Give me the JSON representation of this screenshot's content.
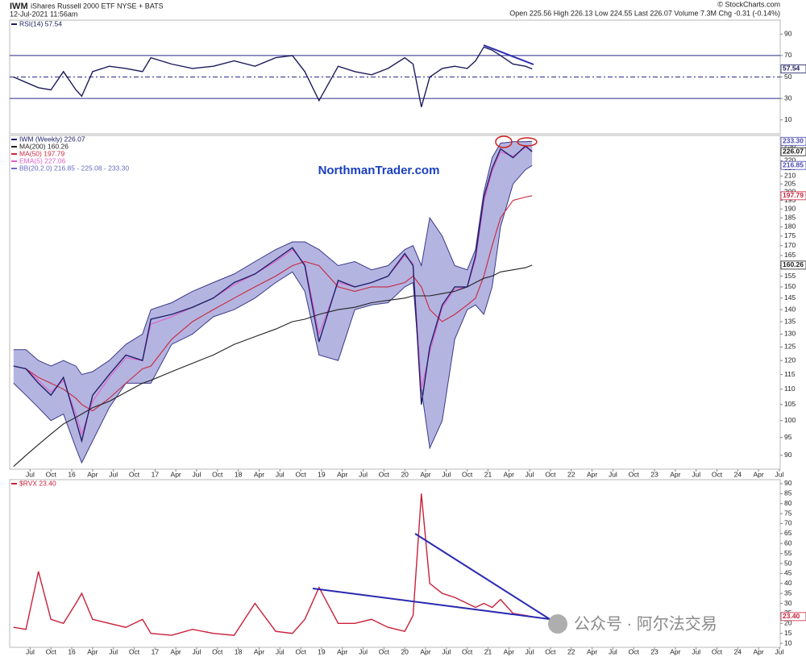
{
  "header": {
    "symbol": "IWM",
    "description": "iShares Russell 2000 ETF NYSE + BATS",
    "date": "12-Jul-2021 11:56am",
    "source": "© StockCharts.com",
    "quote": "Open 225.56 High 226.13 Low 224.55 Last 226.07 Volume 7.3M Chg -0.31 (-0.14%)"
  },
  "watermark": "公众号 · 阿尔法交易",
  "chart_data": [
    {
      "type": "line",
      "xlim": [
        2015.254,
        2024.51
      ],
      "ylim": [
        -3,
        103
      ],
      "yticks": [
        10,
        30,
        50,
        70,
        90
      ],
      "levels": [
        30,
        50,
        70
      ],
      "x": [
        2015.3,
        2015.45,
        2015.6,
        2015.75,
        2015.9,
        2016.05,
        2016.12,
        2016.25,
        2016.45,
        2016.65,
        2016.85,
        2016.95,
        2017.2,
        2017.45,
        2017.7,
        2017.95,
        2018.2,
        2018.45,
        2018.65,
        2018.8,
        2018.97,
        2019.2,
        2019.4,
        2019.6,
        2019.8,
        2020.0,
        2020.1,
        2020.2,
        2020.3,
        2020.45,
        2020.6,
        2020.75,
        2020.85,
        2020.95,
        2021.05,
        2021.15,
        2021.3,
        2021.45,
        2021.53
      ],
      "series": [
        {
          "name": "RSI(14) 57.54",
          "color": "#1c1c5c",
          "values": [
            50,
            45,
            40,
            38,
            55,
            38,
            32,
            55,
            60,
            58,
            55,
            68,
            62,
            58,
            60,
            65,
            60,
            68,
            70,
            55,
            28,
            60,
            55,
            52,
            58,
            68,
            62,
            22,
            50,
            58,
            60,
            58,
            65,
            78,
            75,
            70,
            62,
            60,
            57.54
          ]
        }
      ],
      "markers": [
        {
          "value": 57.54,
          "label": "57.54",
          "color": "#1c1c5c"
        }
      ]
    },
    {
      "type": "line",
      "log": true,
      "xlim": [
        2015.254,
        2024.51
      ],
      "ylim": [
        86.3,
        237.5
      ],
      "yticks": [
        90,
        95,
        100,
        105,
        110,
        115,
        120,
        125,
        130,
        135,
        140,
        145,
        150,
        155,
        160,
        165,
        170,
        175,
        180,
        185,
        190,
        195,
        200,
        205,
        210,
        215,
        220,
        225,
        230
      ],
      "annotation": "NorthmanTrader.com",
      "x": [
        2015.3,
        2015.45,
        2015.6,
        2015.75,
        2015.9,
        2016.05,
        2016.12,
        2016.25,
        2016.45,
        2016.65,
        2016.85,
        2016.95,
        2017.2,
        2017.45,
        2017.7,
        2017.95,
        2018.2,
        2018.45,
        2018.65,
        2018.8,
        2018.97,
        2019.2,
        2019.4,
        2019.6,
        2019.8,
        2020.0,
        2020.1,
        2020.2,
        2020.3,
        2020.45,
        2020.6,
        2020.75,
        2020.85,
        2020.95,
        2021.05,
        2021.15,
        2021.3,
        2021.45,
        2021.53
      ],
      "bands": {
        "name": "BB(20,2.0) 216.85 - 225.08 - 233.30",
        "color": "#6a6ac4",
        "upper": [
          124,
          124,
          120,
          118,
          120,
          118,
          115,
          116,
          120,
          126,
          130,
          140,
          143,
          148,
          152,
          156,
          162,
          168,
          172,
          172,
          168,
          160,
          162,
          158,
          160,
          168,
          170,
          160,
          185,
          175,
          160,
          158,
          168,
          200,
          222,
          232,
          233,
          233,
          233.3
        ],
        "lower": [
          112,
          108,
          104,
          100,
          102,
          92,
          88,
          94,
          104,
          112,
          112,
          112,
          126,
          130,
          137,
          140,
          145,
          152,
          157,
          148,
          122,
          120,
          140,
          142,
          143,
          150,
          152,
          110,
          92,
          100,
          128,
          140,
          142,
          138,
          150,
          180,
          205,
          214,
          216.85
        ]
      },
      "series": [
        {
          "name": "IWM (Weekly) 226.07",
          "color": "#20206a",
          "values": [
            118,
            117,
            112,
            108,
            114,
            100,
            94,
            108,
            115,
            122,
            120,
            136,
            138,
            141,
            145,
            152,
            156,
            163,
            169,
            160,
            127,
            153,
            150,
            152,
            155,
            166,
            160,
            105,
            125,
            142,
            150,
            150,
            165,
            197,
            215,
            228,
            222,
            230,
            226.07
          ]
        },
        {
          "name": "MA(200) 160.26",
          "color": "#222222",
          "values": [
            87,
            90,
            93,
            96,
            99,
            101,
            102,
            104,
            106,
            109,
            112,
            113,
            116,
            119,
            122,
            126,
            129,
            132,
            135,
            136,
            138,
            140,
            141,
            143,
            144,
            145,
            146,
            146,
            146,
            147,
            148,
            150,
            152,
            154,
            155,
            157,
            158,
            159,
            160.26
          ]
        },
        {
          "name": "MA(50) 197.79",
          "color": "#c8283c",
          "values": [
            118,
            117,
            114,
            112,
            110,
            107,
            105,
            103,
            107,
            112,
            117,
            118,
            128,
            135,
            140,
            145,
            150,
            155,
            160,
            162,
            160,
            150,
            148,
            150,
            150,
            152,
            155,
            150,
            140,
            135,
            138,
            142,
            145,
            155,
            170,
            185,
            195,
            197,
            197.79
          ]
        },
        {
          "name": "EMA(5) 227.06",
          "color": "#e060c8",
          "values": [
            118,
            117,
            113,
            109,
            113,
            102,
            96,
            106,
            114,
            121,
            120,
            134,
            137,
            141,
            145,
            151,
            156,
            162,
            168,
            161,
            130,
            152,
            150,
            152,
            155,
            165,
            161,
            110,
            123,
            141,
            149,
            150,
            163,
            194,
            213,
            226,
            223,
            229,
            227.06
          ]
        }
      ],
      "markers": [
        {
          "value": 233.3,
          "label": "233.30",
          "color": "#4a4ab0"
        },
        {
          "value": 226.07,
          "label": "226.07",
          "color": "#111111"
        },
        {
          "value": 216.85,
          "label": "216.85",
          "color": "#4a4ab0"
        },
        {
          "value": 197.79,
          "label": "197.79",
          "color": "#c8283c"
        },
        {
          "value": 160.26,
          "label": "160.26",
          "color": "#222222"
        }
      ],
      "xticks": [
        {
          "value": 2015.5,
          "label": "Jul"
        },
        {
          "value": 2015.75,
          "label": "Oct"
        },
        {
          "value": 2016,
          "label": "16"
        },
        {
          "value": 2016.25,
          "label": "Apr"
        },
        {
          "value": 2016.5,
          "label": "Jul"
        },
        {
          "value": 2016.75,
          "label": "Oct"
        },
        {
          "value": 2017,
          "label": "17"
        },
        {
          "value": 2017.25,
          "label": "Apr"
        },
        {
          "value": 2017.5,
          "label": "Jul"
        },
        {
          "value": 2017.75,
          "label": "Oct"
        },
        {
          "value": 2018,
          "label": "18"
        },
        {
          "value": 2018.25,
          "label": "Apr"
        },
        {
          "value": 2018.5,
          "label": "Jul"
        },
        {
          "value": 2018.75,
          "label": "Oct"
        },
        {
          "value": 2019,
          "label": "19"
        },
        {
          "value": 2019.25,
          "label": "Apr"
        },
        {
          "value": 2019.5,
          "label": "Jul"
        },
        {
          "value": 2019.75,
          "label": "Oct"
        },
        {
          "value": 2020,
          "label": "20"
        },
        {
          "value": 2020.25,
          "label": "Apr"
        },
        {
          "value": 2020.5,
          "label": "Jul"
        },
        {
          "value": 2020.75,
          "label": "Oct"
        },
        {
          "value": 2021,
          "label": "21"
        },
        {
          "value": 2021.25,
          "label": "Apr"
        },
        {
          "value": 2021.5,
          "label": "Jul"
        },
        {
          "value": 2021.75,
          "label": "Oct"
        },
        {
          "value": 2022,
          "label": "22"
        },
        {
          "value": 2022.25,
          "label": "Apr"
        },
        {
          "value": 2022.5,
          "label": "Jul"
        },
        {
          "value": 2022.75,
          "label": "Oct"
        },
        {
          "value": 2023,
          "label": "23"
        },
        {
          "value": 2023.25,
          "label": "Apr"
        },
        {
          "value": 2023.5,
          "label": "Jul"
        },
        {
          "value": 2023.75,
          "label": "Oct"
        },
        {
          "value": 2024,
          "label": "24"
        },
        {
          "value": 2024.25,
          "label": "Apr"
        },
        {
          "value": 2024.5,
          "label": "Jul"
        }
      ]
    },
    {
      "type": "line",
      "xlim": [
        2015.254,
        2024.51
      ],
      "ylim": [
        8,
        92
      ],
      "yticks": [
        10,
        15,
        20,
        25,
        30,
        35,
        40,
        45,
        50,
        55,
        60,
        65,
        70,
        75,
        80,
        85,
        90
      ],
      "x": [
        2015.3,
        2015.45,
        2015.6,
        2015.75,
        2015.9,
        2016.05,
        2016.12,
        2016.25,
        2016.45,
        2016.65,
        2016.85,
        2016.95,
        2017.2,
        2017.45,
        2017.7,
        2017.95,
        2018.2,
        2018.45,
        2018.65,
        2018.8,
        2018.97,
        2019.2,
        2019.4,
        2019.6,
        2019.8,
        2020.0,
        2020.1,
        2020.2,
        2020.3,
        2020.45,
        2020.6,
        2020.75,
        2020.85,
        2020.95,
        2021.05,
        2021.15,
        2021.3,
        2021.45,
        2021.53
      ],
      "series": [
        {
          "name": "$RVX 23.40",
          "color": "#c8203a",
          "values": [
            18,
            17,
            46,
            22,
            20,
            30,
            35,
            22,
            20,
            18,
            22,
            15,
            14,
            17,
            15,
            14,
            30,
            16,
            15,
            22,
            38,
            20,
            20,
            22,
            18,
            16,
            24,
            85,
            40,
            35,
            33,
            30,
            28,
            30,
            28,
            32,
            25,
            24,
            23.4
          ]
        }
      ],
      "markers": [
        {
          "value": 23.4,
          "label": "23.40",
          "color": "#c8203a"
        }
      ],
      "xticks": [
        {
          "value": 2015.5,
          "label": "Jul"
        },
        {
          "value": 2015.75,
          "label": "Oct"
        },
        {
          "value": 2016,
          "label": "16"
        },
        {
          "value": 2016.25,
          "label": "Apr"
        },
        {
          "value": 2016.5,
          "label": "Jul"
        },
        {
          "value": 2016.75,
          "label": "Oct"
        },
        {
          "value": 2017,
          "label": "17"
        },
        {
          "value": 2017.25,
          "label": "Apr"
        },
        {
          "value": 2017.5,
          "label": "Jul"
        },
        {
          "value": 2017.75,
          "label": "Oct"
        },
        {
          "value": 2018,
          "label": "18"
        },
        {
          "value": 2018.25,
          "label": "Apr"
        },
        {
          "value": 2018.5,
          "label": "Jul"
        },
        {
          "value": 2018.75,
          "label": "Oct"
        },
        {
          "value": 2019,
          "label": "19"
        },
        {
          "value": 2019.25,
          "label": "Apr"
        },
        {
          "value": 2019.5,
          "label": "Jul"
        },
        {
          "value": 2019.75,
          "label": "Oct"
        },
        {
          "value": 2020,
          "label": "20"
        },
        {
          "value": 2020.25,
          "label": "Apr"
        },
        {
          "value": 2020.5,
          "label": "Jul"
        },
        {
          "value": 2020.75,
          "label": "Oct"
        },
        {
          "value": 2021,
          "label": "21"
        },
        {
          "value": 2021.25,
          "label": "Apr"
        },
        {
          "value": 2021.5,
          "label": "Jul"
        },
        {
          "value": 2021.75,
          "label": "Oct"
        },
        {
          "value": 2022,
          "label": "22"
        },
        {
          "value": 2022.25,
          "label": "Apr"
        },
        {
          "value": 2022.5,
          "label": "Jul"
        },
        {
          "value": 2022.75,
          "label": "Oct"
        },
        {
          "value": 2023,
          "label": "23"
        },
        {
          "value": 2023.25,
          "label": "Apr"
        },
        {
          "value": 2023.5,
          "label": "Jul"
        },
        {
          "value": 2023.75,
          "label": "Oct"
        },
        {
          "value": 2024,
          "label": "24"
        },
        {
          "value": 2024.25,
          "label": "Apr"
        },
        {
          "value": 2024.5,
          "label": "Jul"
        }
      ]
    }
  ]
}
